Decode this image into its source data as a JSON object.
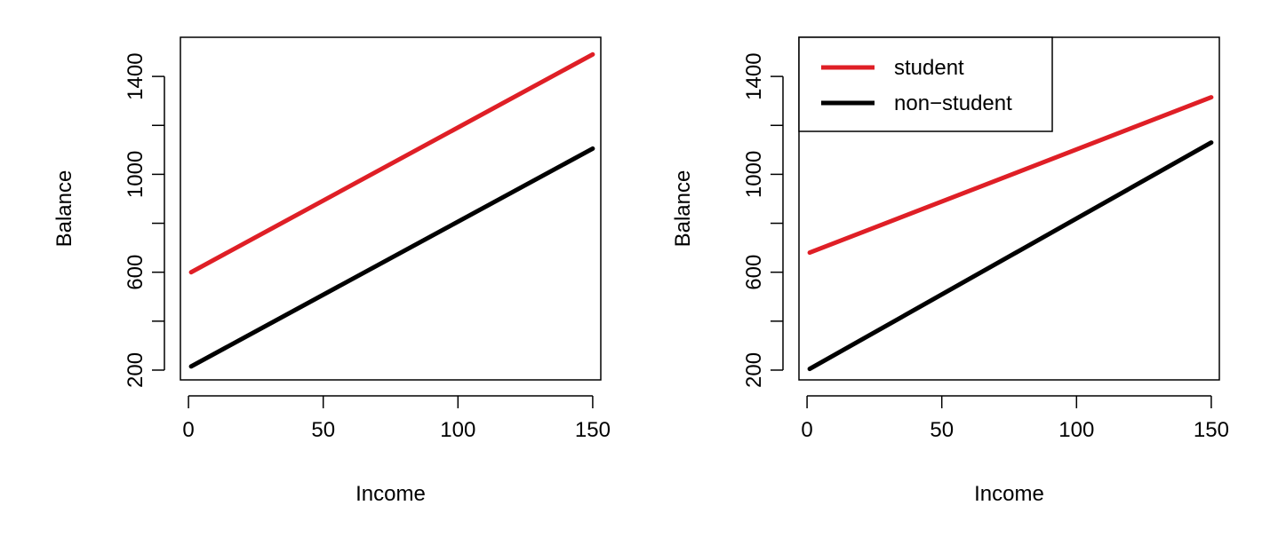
{
  "chart_data": [
    {
      "type": "line",
      "title": "",
      "xlabel": "Income",
      "ylabel": "Balance",
      "xlim": [
        -3,
        153
      ],
      "ylim": [
        160,
        1560
      ],
      "xticks": [
        0,
        50,
        100,
        150
      ],
      "yticks": [
        200,
        600,
        1000,
        1400
      ],
      "yminor": [
        400,
        800,
        1200
      ],
      "grid": false,
      "legend": null,
      "series": [
        {
          "x": [
            1,
            150
          ],
          "y": [
            600,
            1490
          ],
          "color": "#DF1F26"
        },
        {
          "x": [
            1,
            150
          ],
          "y": [
            215,
            1105
          ],
          "color": "#000000"
        }
      ]
    },
    {
      "type": "line",
      "title": "",
      "xlabel": "Income",
      "ylabel": "Balance",
      "xlim": [
        -3,
        153
      ],
      "ylim": [
        160,
        1560
      ],
      "xticks": [
        0,
        50,
        100,
        150
      ],
      "yticks": [
        200,
        600,
        1000,
        1400
      ],
      "yminor": [
        400,
        800,
        1200
      ],
      "grid": false,
      "legend": "top-left",
      "series": [
        {
          "name": "student",
          "x": [
            1,
            150
          ],
          "y": [
            680,
            1315
          ],
          "color": "#DF1F26"
        },
        {
          "name": "non−student",
          "x": [
            1,
            150
          ],
          "y": [
            205,
            1130
          ],
          "color": "#000000"
        }
      ]
    }
  ]
}
